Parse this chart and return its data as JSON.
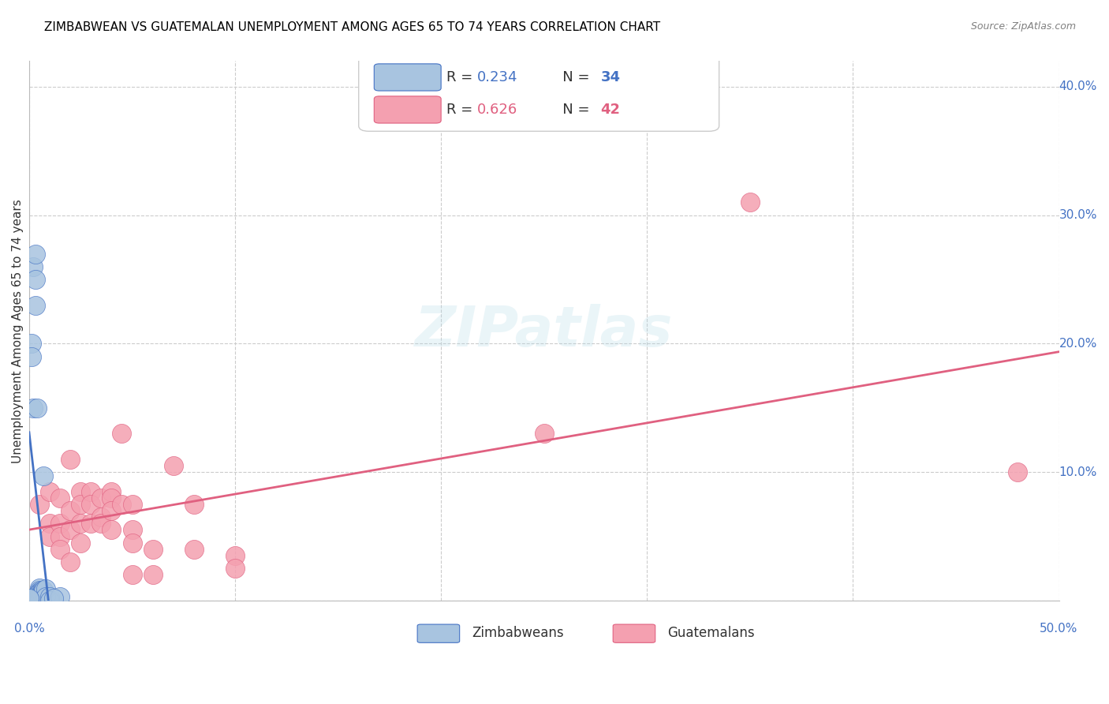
{
  "title": "ZIMBABWEAN VS GUATEMALAN UNEMPLOYMENT AMONG AGES 65 TO 74 YEARS CORRELATION CHART",
  "source": "Source: ZipAtlas.com",
  "xlabel": "",
  "ylabel": "Unemployment Among Ages 65 to 74 years",
  "xlim": [
    0.0,
    0.5
  ],
  "ylim": [
    0.0,
    0.42
  ],
  "xticks": [
    0.0,
    0.1,
    0.2,
    0.3,
    0.4,
    0.5
  ],
  "xtick_labels": [
    "0.0%",
    "",
    "",
    "",
    "",
    "50.0%"
  ],
  "yticks": [
    0.0,
    0.1,
    0.2,
    0.3,
    0.4
  ],
  "ytick_labels": [
    "",
    "10.0%",
    "20.0%",
    "30.0%",
    "40.0%"
  ],
  "legend_zim": "R = 0.234   N = 34",
  "legend_guat": "R = 0.626   N = 42",
  "zim_color": "#a8c4e0",
  "guat_color": "#f4a0b0",
  "zim_line_color": "#4472c4",
  "guat_line_color": "#e06080",
  "zim_scatter": [
    [
      0.005,
      0.01
    ],
    [
      0.005,
      0.008
    ],
    [
      0.005,
      0.007
    ],
    [
      0.005,
      0.005
    ],
    [
      0.005,
      0.006
    ],
    [
      0.005,
      0.004
    ],
    [
      0.005,
      0.003
    ],
    [
      0.005,
      0.002
    ],
    [
      0.005,
      0.001
    ],
    [
      0.005,
      0.0
    ],
    [
      0.005,
      0.0
    ],
    [
      0.006,
      0.008
    ],
    [
      0.006,
      0.007
    ],
    [
      0.006,
      0.006
    ],
    [
      0.006,
      0.005
    ],
    [
      0.007,
      0.097
    ],
    [
      0.007,
      0.007
    ],
    [
      0.007,
      0.008
    ],
    [
      0.008,
      0.009
    ],
    [
      0.008,
      0.003
    ],
    [
      0.01,
      0.003
    ],
    [
      0.01,
      0.0
    ],
    [
      0.002,
      0.15
    ],
    [
      0.002,
      0.26
    ],
    [
      0.003,
      0.27
    ],
    [
      0.003,
      0.25
    ],
    [
      0.003,
      0.23
    ],
    [
      0.001,
      0.2
    ],
    [
      0.001,
      0.19
    ],
    [
      0.004,
      0.15
    ],
    [
      0.015,
      0.003
    ],
    [
      0.0,
      0.001
    ],
    [
      0.0,
      0.002
    ],
    [
      0.012,
      0.002
    ]
  ],
  "guat_scatter": [
    [
      0.005,
      0.075
    ],
    [
      0.01,
      0.085
    ],
    [
      0.01,
      0.06
    ],
    [
      0.01,
      0.05
    ],
    [
      0.015,
      0.08
    ],
    [
      0.015,
      0.06
    ],
    [
      0.015,
      0.05
    ],
    [
      0.015,
      0.04
    ],
    [
      0.02,
      0.11
    ],
    [
      0.02,
      0.07
    ],
    [
      0.02,
      0.055
    ],
    [
      0.02,
      0.03
    ],
    [
      0.025,
      0.085
    ],
    [
      0.025,
      0.075
    ],
    [
      0.025,
      0.06
    ],
    [
      0.025,
      0.045
    ],
    [
      0.03,
      0.085
    ],
    [
      0.03,
      0.075
    ],
    [
      0.03,
      0.06
    ],
    [
      0.035,
      0.08
    ],
    [
      0.035,
      0.065
    ],
    [
      0.035,
      0.06
    ],
    [
      0.04,
      0.085
    ],
    [
      0.04,
      0.08
    ],
    [
      0.04,
      0.07
    ],
    [
      0.04,
      0.055
    ],
    [
      0.045,
      0.13
    ],
    [
      0.045,
      0.075
    ],
    [
      0.05,
      0.075
    ],
    [
      0.05,
      0.055
    ],
    [
      0.05,
      0.045
    ],
    [
      0.05,
      0.02
    ],
    [
      0.06,
      0.04
    ],
    [
      0.06,
      0.02
    ],
    [
      0.07,
      0.105
    ],
    [
      0.08,
      0.075
    ],
    [
      0.08,
      0.04
    ],
    [
      0.1,
      0.035
    ],
    [
      0.1,
      0.025
    ],
    [
      0.35,
      0.31
    ],
    [
      0.25,
      0.13
    ],
    [
      0.48,
      0.1
    ]
  ],
  "watermark": "ZIPatlas",
  "background_color": "#ffffff",
  "grid_color": "#cccccc"
}
